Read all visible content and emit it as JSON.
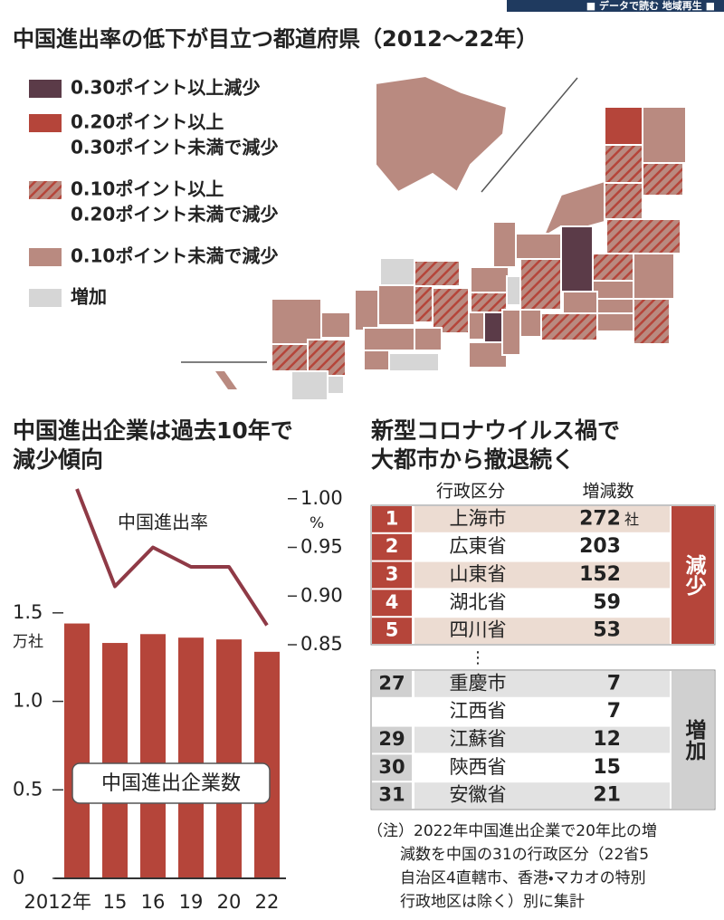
{
  "header_tag": "■ データで読む 地域再生 ■",
  "title": "中国進出率の低下が目立つ都道府県（2012〜22年）",
  "map": {
    "legend": [
      {
        "label": [
          "0.30ポイント以上減少"
        ],
        "color": "#5b3b48"
      },
      {
        "label": [
          "0.20ポイント以上",
          "0.30ポイント未満で減少"
        ],
        "color": "#b5453a"
      },
      {
        "label": [
          "0.10ポイント以上",
          "0.20ポイント未満で減少"
        ],
        "color": "#b98a80",
        "pattern": "hatch",
        "hatch_color": "#b5453a"
      },
      {
        "label": [
          "0.10ポイント未満で減少"
        ],
        "color": "#b98a80"
      },
      {
        "label": [
          "増加"
        ],
        "color": "#d6d6d6"
      }
    ]
  },
  "chart_data": {
    "type": "bar",
    "title": [
      "中国進出企業は過去10年で",
      "減少傾向"
    ],
    "categories": [
      "2012年",
      "15",
      "16",
      "19",
      "20",
      "22"
    ],
    "series": [
      {
        "name": "中国進出企業数",
        "color": "#b5453a",
        "values": [
          1.44,
          1.33,
          1.38,
          1.36,
          1.35,
          1.28
        ]
      },
      {
        "name": "中国進出率",
        "type": "line",
        "axis": "y2",
        "color": "#8f3a46",
        "values": [
          1.01,
          0.91,
          0.95,
          0.93,
          0.93,
          0.87
        ]
      }
    ],
    "ylim": [
      0,
      2.2
    ],
    "yticks": [
      0,
      0.5,
      {
        "value": 1,
        "label": "1.0"
      },
      1.5
    ],
    "y_unit": "万社",
    "y2lim": [
      0.61,
      1.01
    ],
    "y2ticks": [
      0.85,
      {
        "value": 0.9,
        "label": "0.90"
      },
      0.95,
      {
        "value": 1,
        "label": "1.00"
      }
    ],
    "y2_unit": "%"
  },
  "table": {
    "title": [
      "新型コロナウイルス禍で",
      "大都市から撤退続く"
    ],
    "columns": [
      "行政区分",
      "増減数"
    ],
    "groups": [
      {
        "label": "減少",
        "unit": "社",
        "rows": [
          {
            "rank": 1,
            "name": "上海市",
            "value": 272
          },
          {
            "rank": 2,
            "name": "広東省",
            "value": 203
          },
          {
            "rank": 3,
            "name": "山東省",
            "value": 152
          },
          {
            "rank": 4,
            "name": "湖北省",
            "value": 59
          },
          {
            "rank": 5,
            "name": "四川省",
            "value": 53
          }
        ]
      },
      {
        "label": "増加",
        "rows": [
          {
            "rank": 27,
            "name": "重慶市",
            "value": 7
          },
          {
            "rank": null,
            "name": "江西省",
            "value": 7
          },
          {
            "rank": 29,
            "name": "江蘇省",
            "value": 12
          },
          {
            "rank": 30,
            "name": "陝西省",
            "value": 15
          },
          {
            "rank": 31,
            "name": "安徽省",
            "value": 21
          }
        ]
      }
    ],
    "ellipsis": "⋮",
    "note": [
      "（注）2022年中国進出企業で20年比の増",
      "減数を中国の31の行政区分（22省5",
      "自治区4直轄市、香港・マカオの特別",
      "行政地区は除く）別に集計"
    ]
  }
}
